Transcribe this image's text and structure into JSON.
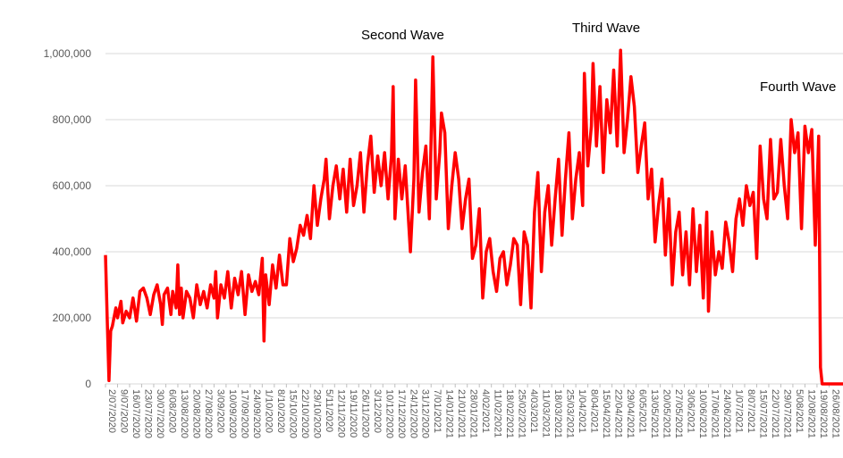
{
  "chart_data": {
    "type": "line",
    "title": "",
    "xlabel": "",
    "ylabel": "",
    "ylim": [
      0,
      1000000
    ],
    "yticks": [
      0,
      200000,
      400000,
      600000,
      800000,
      1000000
    ],
    "ytick_labels": [
      "0",
      "200,000",
      "400,000",
      "600,000",
      "800,000",
      "1,000,000"
    ],
    "xtick_labels": [
      "2/07/2020",
      "9/07/2020",
      "16/07/2020",
      "23/07/2020",
      "30/07/2020",
      "6/08/2020",
      "13/08/2020",
      "20/08/2020",
      "27/08/2020",
      "3/09/2020",
      "10/09/2020",
      "17/09/2020",
      "24/09/2020",
      "1/10/2020",
      "8/10/2020",
      "15/10/2020",
      "22/10/2020",
      "29/10/2020",
      "5/11/2020",
      "12/11/2020",
      "19/11/2020",
      "26/11/2020",
      "3/12/2020",
      "10/12/2020",
      "17/12/2020",
      "24/12/2020",
      "31/12/2020",
      "7/01/2021",
      "14/01/2021",
      "21/01/2021",
      "28/01/2021",
      "4/02/2021",
      "11/02/2021",
      "18/02/2021",
      "25/02/2021",
      "4/03/2021",
      "11/03/2021",
      "18/03/2021",
      "25/03/2021",
      "1/04/2021",
      "8/04/2021",
      "15/04/2021",
      "22/04/2021",
      "29/04/2021",
      "6/05/2021",
      "13/05/2021",
      "20/05/2021",
      "27/05/2021",
      "3/06/2021",
      "10/06/2021",
      "17/06/2021",
      "24/06/2021",
      "1/07/2021",
      "8/07/2021",
      "15/07/2021",
      "22/07/2021",
      "29/07/2021",
      "5/08/2021",
      "12/08/2021",
      "19/08/2021",
      "26/08/2021",
      "2/09/2021",
      "9/09/2021",
      "16/09/2021"
    ],
    "grid": true,
    "legend": "none",
    "line_color": "#ff0000",
    "grid_color": "#d9d9d9",
    "annotations": [
      {
        "text": "Second Wave",
        "x": "7/01/2021"
      },
      {
        "text": "Third Wave",
        "x": "6/05/2021"
      },
      {
        "text": "Fourth Wave",
        "x": "9/09/2021"
      }
    ],
    "series": [
      {
        "points": [
          [
            "2/07/2020",
            390000
          ],
          [
            "3/07/2020",
            200000
          ],
          [
            "4/07/2020",
            10000
          ],
          [
            "5/07/2020",
            160000
          ],
          [
            "6/07/2020",
            175000
          ],
          [
            "8/07/2020",
            230000
          ],
          [
            "9/07/2020",
            200000
          ],
          [
            "11/07/2020",
            250000
          ],
          [
            "12/07/2020",
            185000
          ],
          [
            "14/07/2020",
            220000
          ],
          [
            "16/07/2020",
            200000
          ],
          [
            "18/07/2020",
            260000
          ],
          [
            "20/07/2020",
            190000
          ],
          [
            "22/07/2020",
            280000
          ],
          [
            "24/07/2020",
            290000
          ],
          [
            "26/07/2020",
            260000
          ],
          [
            "28/07/2020",
            210000
          ],
          [
            "30/07/2020",
            270000
          ],
          [
            "1/08/2020",
            300000
          ],
          [
            "3/08/2020",
            240000
          ],
          [
            "4/08/2020",
            180000
          ],
          [
            "5/08/2020",
            270000
          ],
          [
            "7/08/2020",
            290000
          ],
          [
            "9/08/2020",
            210000
          ],
          [
            "10/08/2020",
            280000
          ],
          [
            "12/08/2020",
            230000
          ],
          [
            "13/08/2020",
            360000
          ],
          [
            "14/08/2020",
            210000
          ],
          [
            "15/08/2020",
            290000
          ],
          [
            "16/08/2020",
            200000
          ],
          [
            "18/08/2020",
            280000
          ],
          [
            "20/08/2020",
            260000
          ],
          [
            "22/08/2020",
            200000
          ],
          [
            "24/08/2020",
            300000
          ],
          [
            "26/08/2020",
            240000
          ],
          [
            "28/08/2020",
            280000
          ],
          [
            "30/08/2020",
            230000
          ],
          [
            "1/09/2020",
            300000
          ],
          [
            "3/09/2020",
            260000
          ],
          [
            "4/09/2020",
            340000
          ],
          [
            "5/09/2020",
            200000
          ],
          [
            "7/09/2020",
            300000
          ],
          [
            "9/09/2020",
            260000
          ],
          [
            "11/09/2020",
            340000
          ],
          [
            "13/09/2020",
            230000
          ],
          [
            "15/09/2020",
            320000
          ],
          [
            "17/09/2020",
            270000
          ],
          [
            "19/09/2020",
            340000
          ],
          [
            "21/09/2020",
            210000
          ],
          [
            "23/09/2020",
            330000
          ],
          [
            "25/09/2020",
            280000
          ],
          [
            "27/09/2020",
            310000
          ],
          [
            "29/09/2020",
            270000
          ],
          [
            "1/10/2020",
            380000
          ],
          [
            "2/10/2020",
            130000
          ],
          [
            "3/10/2020",
            330000
          ],
          [
            "5/10/2020",
            240000
          ],
          [
            "7/10/2020",
            360000
          ],
          [
            "9/10/2020",
            290000
          ],
          [
            "11/10/2020",
            390000
          ],
          [
            "13/10/2020",
            300000
          ],
          [
            "15/10/2020",
            300000
          ],
          [
            "17/10/2020",
            440000
          ],
          [
            "19/10/2020",
            370000
          ],
          [
            "21/10/2020",
            410000
          ],
          [
            "23/10/2020",
            480000
          ],
          [
            "25/10/2020",
            450000
          ],
          [
            "27/10/2020",
            510000
          ],
          [
            "29/10/2020",
            440000
          ],
          [
            "31/10/2020",
            600000
          ],
          [
            "2/11/2020",
            480000
          ],
          [
            "4/11/2020",
            560000
          ],
          [
            "6/11/2020",
            620000
          ],
          [
            "7/11/2020",
            680000
          ],
          [
            "9/11/2020",
            500000
          ],
          [
            "11/11/2020",
            600000
          ],
          [
            "13/11/2020",
            660000
          ],
          [
            "15/11/2020",
            560000
          ],
          [
            "17/11/2020",
            650000
          ],
          [
            "19/11/2020",
            520000
          ],
          [
            "21/11/2020",
            680000
          ],
          [
            "23/11/2020",
            540000
          ],
          [
            "25/11/2020",
            600000
          ],
          [
            "27/11/2020",
            700000
          ],
          [
            "29/11/2020",
            520000
          ],
          [
            "1/12/2020",
            660000
          ],
          [
            "3/12/2020",
            750000
          ],
          [
            "5/12/2020",
            580000
          ],
          [
            "7/12/2020",
            690000
          ],
          [
            "9/12/2020",
            600000
          ],
          [
            "11/12/2020",
            700000
          ],
          [
            "13/12/2020",
            560000
          ],
          [
            "15/12/2020",
            690000
          ],
          [
            "16/12/2020",
            900000
          ],
          [
            "17/12/2020",
            500000
          ],
          [
            "19/12/2020",
            680000
          ],
          [
            "21/12/2020",
            560000
          ],
          [
            "23/12/2020",
            660000
          ],
          [
            "26/12/2020",
            400000
          ],
          [
            "28/12/2020",
            620000
          ],
          [
            "29/12/2020",
            920000
          ],
          [
            "31/12/2020",
            520000
          ],
          [
            "2/01/2021",
            640000
          ],
          [
            "4/01/2021",
            720000
          ],
          [
            "6/01/2021",
            500000
          ],
          [
            "8/01/2021",
            990000
          ],
          [
            "10/01/2021",
            560000
          ],
          [
            "12/01/2021",
            700000
          ],
          [
            "13/01/2021",
            820000
          ],
          [
            "15/01/2021",
            760000
          ],
          [
            "17/01/2021",
            470000
          ],
          [
            "19/01/2021",
            600000
          ],
          [
            "21/01/2021",
            700000
          ],
          [
            "23/01/2021",
            620000
          ],
          [
            "25/01/2021",
            470000
          ],
          [
            "27/01/2021",
            560000
          ],
          [
            "29/01/2021",
            620000
          ],
          [
            "31/01/2021",
            380000
          ],
          [
            "2/02/2021",
            420000
          ],
          [
            "4/02/2021",
            530000
          ],
          [
            "6/02/2021",
            260000
          ],
          [
            "8/02/2021",
            400000
          ],
          [
            "10/02/2021",
            440000
          ],
          [
            "12/02/2021",
            340000
          ],
          [
            "14/02/2021",
            280000
          ],
          [
            "16/02/2021",
            380000
          ],
          [
            "18/02/2021",
            400000
          ],
          [
            "20/02/2021",
            300000
          ],
          [
            "22/02/2021",
            360000
          ],
          [
            "24/02/2021",
            440000
          ],
          [
            "26/02/2021",
            420000
          ],
          [
            "28/02/2021",
            240000
          ],
          [
            "2/03/2021",
            460000
          ],
          [
            "4/03/2021",
            420000
          ],
          [
            "6/03/2021",
            230000
          ],
          [
            "8/03/2021",
            520000
          ],
          [
            "10/03/2021",
            640000
          ],
          [
            "12/03/2021",
            340000
          ],
          [
            "14/03/2021",
            520000
          ],
          [
            "16/03/2021",
            600000
          ],
          [
            "18/03/2021",
            420000
          ],
          [
            "20/03/2021",
            560000
          ],
          [
            "22/03/2021",
            680000
          ],
          [
            "24/03/2021",
            450000
          ],
          [
            "26/03/2021",
            620000
          ],
          [
            "28/03/2021",
            760000
          ],
          [
            "30/03/2021",
            500000
          ],
          [
            "1/04/2021",
            620000
          ],
          [
            "3/04/2021",
            700000
          ],
          [
            "5/04/2021",
            540000
          ],
          [
            "6/04/2021",
            940000
          ],
          [
            "8/04/2021",
            660000
          ],
          [
            "10/04/2021",
            780000
          ],
          [
            "11/04/2021",
            970000
          ],
          [
            "13/04/2021",
            720000
          ],
          [
            "15/04/2021",
            900000
          ],
          [
            "17/04/2021",
            640000
          ],
          [
            "19/04/2021",
            860000
          ],
          [
            "21/04/2021",
            760000
          ],
          [
            "23/04/2021",
            950000
          ],
          [
            "25/04/2021",
            720000
          ],
          [
            "27/04/2021",
            1010000
          ],
          [
            "29/04/2021",
            700000
          ],
          [
            "1/05/2021",
            800000
          ],
          [
            "3/05/2021",
            930000
          ],
          [
            "5/05/2021",
            840000
          ],
          [
            "7/05/2021",
            640000
          ],
          [
            "9/05/2021",
            720000
          ],
          [
            "11/05/2021",
            790000
          ],
          [
            "13/05/2021",
            560000
          ],
          [
            "15/05/2021",
            650000
          ],
          [
            "17/05/2021",
            430000
          ],
          [
            "19/05/2021",
            540000
          ],
          [
            "21/05/2021",
            620000
          ],
          [
            "23/05/2021",
            390000
          ],
          [
            "25/05/2021",
            560000
          ],
          [
            "27/05/2021",
            300000
          ],
          [
            "29/05/2021",
            460000
          ],
          [
            "31/05/2021",
            520000
          ],
          [
            "2/06/2021",
            330000
          ],
          [
            "4/06/2021",
            460000
          ],
          [
            "6/06/2021",
            300000
          ],
          [
            "8/06/2021",
            530000
          ],
          [
            "10/06/2021",
            340000
          ],
          [
            "12/06/2021",
            480000
          ],
          [
            "14/06/2021",
            260000
          ],
          [
            "16/06/2021",
            520000
          ],
          [
            "17/06/2021",
            220000
          ],
          [
            "19/06/2021",
            460000
          ],
          [
            "21/06/2021",
            330000
          ],
          [
            "23/06/2021",
            400000
          ],
          [
            "25/06/2021",
            350000
          ],
          [
            "27/06/2021",
            490000
          ],
          [
            "29/06/2021",
            430000
          ],
          [
            "1/07/2021",
            340000
          ],
          [
            "3/07/2021",
            500000
          ],
          [
            "5/07/2021",
            560000
          ],
          [
            "7/07/2021",
            480000
          ],
          [
            "9/07/2021",
            600000
          ],
          [
            "11/07/2021",
            540000
          ],
          [
            "13/07/2021",
            580000
          ],
          [
            "15/07/2021",
            380000
          ],
          [
            "17/07/2021",
            720000
          ],
          [
            "19/07/2021",
            560000
          ],
          [
            "21/07/2021",
            500000
          ],
          [
            "23/07/2021",
            740000
          ],
          [
            "25/07/2021",
            560000
          ],
          [
            "27/07/2021",
            580000
          ],
          [
            "29/07/2021",
            740000
          ],
          [
            "31/07/2021",
            600000
          ],
          [
            "2/08/2021",
            500000
          ],
          [
            "4/08/2021",
            800000
          ],
          [
            "6/08/2021",
            700000
          ],
          [
            "8/08/2021",
            760000
          ],
          [
            "10/08/2021",
            470000
          ],
          [
            "12/08/2021",
            780000
          ],
          [
            "14/08/2021",
            700000
          ],
          [
            "16/08/2021",
            770000
          ],
          [
            "18/08/2021",
            420000
          ],
          [
            "20/08/2021",
            750000
          ],
          [
            "21/08/2021",
            50000
          ],
          [
            "22/08/2021",
            0
          ],
          [
            "15/09/2021",
            0
          ]
        ]
      }
    ]
  }
}
